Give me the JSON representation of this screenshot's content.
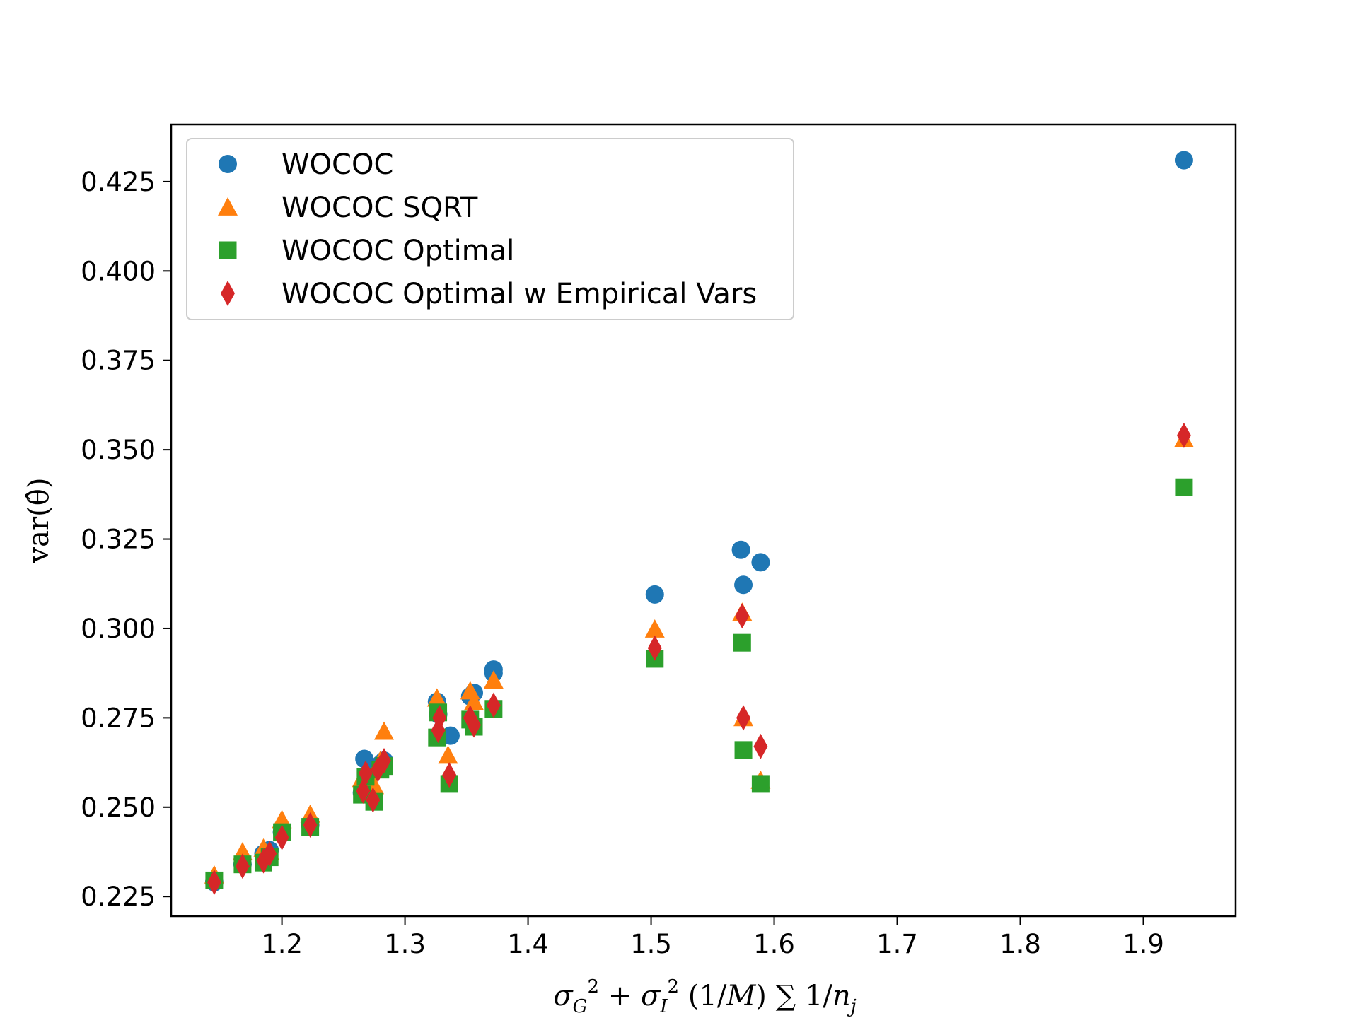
{
  "chart_data": {
    "type": "scatter",
    "xlabel": "σ_G² + σ_I² (1/M) ∑ 1/n_j",
    "ylabel": "var(θ̂)",
    "xlim": [
      1.11,
      1.975
    ],
    "ylim": [
      0.2195,
      0.441
    ],
    "x_ticks": [
      "1.2",
      "1.3",
      "1.4",
      "1.5",
      "1.6",
      "1.7",
      "1.8",
      "1.9"
    ],
    "y_ticks": [
      "0.225",
      "0.250",
      "0.275",
      "0.300",
      "0.325",
      "0.350",
      "0.375",
      "0.400",
      "0.425"
    ],
    "legend_position": "upper-left",
    "grid": false,
    "series": [
      {
        "name": "WOCOC",
        "marker": "circle",
        "color": "#1f77b4",
        "points": [
          [
            1.145,
            0.229
          ],
          [
            1.168,
            0.234
          ],
          [
            1.185,
            0.237
          ],
          [
            1.19,
            0.238
          ],
          [
            1.2,
            0.243
          ],
          [
            1.223,
            0.245
          ],
          [
            1.265,
            0.254
          ],
          [
            1.267,
            0.2635
          ],
          [
            1.27,
            0.258
          ],
          [
            1.275,
            0.261
          ],
          [
            1.28,
            0.262
          ],
          [
            1.283,
            0.263
          ],
          [
            1.326,
            0.2795
          ],
          [
            1.327,
            0.276
          ],
          [
            1.337,
            0.27
          ],
          [
            1.353,
            0.281
          ],
          [
            1.356,
            0.282
          ],
          [
            1.372,
            0.2885
          ],
          [
            1.372,
            0.2875
          ],
          [
            1.503,
            0.3095
          ],
          [
            1.573,
            0.322
          ],
          [
            1.575,
            0.3122
          ],
          [
            1.589,
            0.3185
          ],
          [
            1.933,
            0.431
          ]
        ]
      },
      {
        "name": "WOCOC SQRT",
        "marker": "triangle",
        "color": "#ff7f0e",
        "points": [
          [
            1.145,
            0.231
          ],
          [
            1.168,
            0.2375
          ],
          [
            1.185,
            0.2385
          ],
          [
            1.19,
            0.2375
          ],
          [
            1.2,
            0.2465
          ],
          [
            1.223,
            0.248
          ],
          [
            1.265,
            0.258
          ],
          [
            1.27,
            0.2545
          ],
          [
            1.275,
            0.256
          ],
          [
            1.28,
            0.263
          ],
          [
            1.283,
            0.2712
          ],
          [
            1.326,
            0.2805
          ],
          [
            1.335,
            0.2645
          ],
          [
            1.353,
            0.2825
          ],
          [
            1.356,
            0.2795
          ],
          [
            1.372,
            0.2855
          ],
          [
            1.503,
            0.2998
          ],
          [
            1.574,
            0.3045
          ],
          [
            1.575,
            0.275
          ],
          [
            1.589,
            0.2575
          ],
          [
            1.933,
            0.353
          ]
        ]
      },
      {
        "name": "WOCOC Optimal",
        "marker": "square",
        "color": "#2ca02c",
        "points": [
          [
            1.145,
            0.2295
          ],
          [
            1.168,
            0.234
          ],
          [
            1.185,
            0.2345
          ],
          [
            1.19,
            0.236
          ],
          [
            1.2,
            0.243
          ],
          [
            1.223,
            0.2445
          ],
          [
            1.265,
            0.2535
          ],
          [
            1.268,
            0.2585
          ],
          [
            1.275,
            0.2515
          ],
          [
            1.28,
            0.2605
          ],
          [
            1.283,
            0.2615
          ],
          [
            1.326,
            0.2695
          ],
          [
            1.327,
            0.2765
          ],
          [
            1.336,
            0.2565
          ],
          [
            1.353,
            0.2745
          ],
          [
            1.356,
            0.2725
          ],
          [
            1.372,
            0.2775
          ],
          [
            1.503,
            0.2915
          ],
          [
            1.574,
            0.296
          ],
          [
            1.575,
            0.266
          ],
          [
            1.589,
            0.2565
          ],
          [
            1.933,
            0.3395
          ]
        ]
      },
      {
        "name": "WOCOC Optimal w Empirical Vars",
        "marker": "diamond",
        "color": "#d62728",
        "points": [
          [
            1.145,
            0.229
          ],
          [
            1.168,
            0.2335
          ],
          [
            1.185,
            0.235
          ],
          [
            1.19,
            0.237
          ],
          [
            1.2,
            0.2415
          ],
          [
            1.223,
            0.245
          ],
          [
            1.266,
            0.2545
          ],
          [
            1.268,
            0.2595
          ],
          [
            1.274,
            0.252
          ],
          [
            1.278,
            0.2605
          ],
          [
            1.283,
            0.263
          ],
          [
            1.327,
            0.2715
          ],
          [
            1.328,
            0.275
          ],
          [
            1.336,
            0.259
          ],
          [
            1.353,
            0.275
          ],
          [
            1.356,
            0.273
          ],
          [
            1.372,
            0.2785
          ],
          [
            1.503,
            0.2945
          ],
          [
            1.574,
            0.3035
          ],
          [
            1.575,
            0.275
          ],
          [
            1.589,
            0.267
          ],
          [
            1.933,
            0.354
          ]
        ]
      }
    ]
  }
}
